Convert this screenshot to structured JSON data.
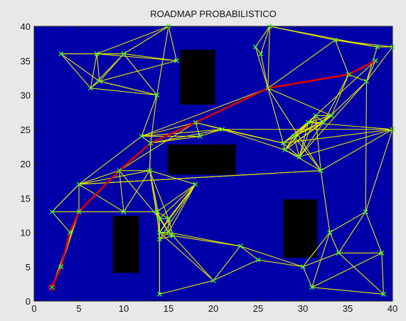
{
  "chart_data": {
    "type": "scatter",
    "title": "ROADMAP PROBABILISTICO",
    "xlabel": "",
    "ylabel": "",
    "xlim": [
      0,
      40
    ],
    "ylim": [
      0,
      40
    ],
    "xticks": [
      0,
      5,
      10,
      15,
      20,
      25,
      30,
      35,
      40
    ],
    "yticks": [
      0,
      5,
      10,
      15,
      20,
      25,
      30,
      35,
      40
    ],
    "grid": false,
    "colors": {
      "plot_bg": "#0000a8",
      "figure_bg": "#e8e8e8",
      "edges": "#e6e600",
      "nodes": "#33ff33",
      "path": "#dd0000",
      "obstacles": "#000000",
      "start_marker": "#dd0000"
    },
    "obstacles": [
      {
        "x0": 16.3,
        "y0": 28.6,
        "x1": 20.2,
        "y1": 36.6
      },
      {
        "x0": 14.9,
        "y0": 18.4,
        "x1": 22.5,
        "y1": 22.8
      },
      {
        "x0": 8.8,
        "y0": 4.1,
        "x1": 11.7,
        "y1": 12.4
      },
      {
        "x0": 27.8,
        "y0": 6.3,
        "x1": 31.6,
        "y1": 14.8
      }
    ],
    "nodes": [
      [
        3,
        36
      ],
      [
        7,
        36
      ],
      [
        10,
        36
      ],
      [
        6.3,
        31
      ],
      [
        7.3,
        32
      ],
      [
        15.9,
        35
      ],
      [
        15,
        40
      ],
      [
        13.7,
        30
      ],
      [
        24.7,
        37
      ],
      [
        25.3,
        36
      ],
      [
        26.3,
        40
      ],
      [
        33.6,
        38
      ],
      [
        38.3,
        37
      ],
      [
        40,
        37
      ],
      [
        37.1,
        32
      ],
      [
        26.1,
        31
      ],
      [
        35.1,
        33
      ],
      [
        38.1,
        35
      ],
      [
        40,
        25
      ],
      [
        32.3,
        26
      ],
      [
        33.2,
        27
      ],
      [
        31.4,
        27
      ],
      [
        30.6,
        26
      ],
      [
        29,
        24
      ],
      [
        28,
        22
      ],
      [
        29.6,
        21
      ],
      [
        32,
        19
      ],
      [
        27.8,
        23
      ],
      [
        12,
        24
      ],
      [
        13,
        23
      ],
      [
        18,
        26
      ],
      [
        18.5,
        24
      ],
      [
        21,
        25
      ],
      [
        5,
        17
      ],
      [
        9.5,
        19
      ],
      [
        10,
        13
      ],
      [
        12.9,
        19
      ],
      [
        18,
        17
      ],
      [
        13.7,
        13
      ],
      [
        14,
        12
      ],
      [
        15,
        12
      ],
      [
        14,
        10
      ],
      [
        15,
        10
      ],
      [
        14,
        9
      ],
      [
        15.5,
        9.5
      ],
      [
        2,
        13
      ],
      [
        4,
        10
      ],
      [
        3,
        5
      ],
      [
        2,
        2
      ],
      [
        5,
        13
      ],
      [
        23,
        8
      ],
      [
        25,
        6
      ],
      [
        20,
        3
      ],
      [
        14,
        1
      ],
      [
        30,
        5
      ],
      [
        31,
        2
      ],
      [
        33,
        10
      ],
      [
        37,
        13
      ],
      [
        34,
        7
      ],
      [
        38.8,
        7
      ],
      [
        39,
        1
      ]
    ],
    "edges": [
      [
        0,
        1
      ],
      [
        0,
        2
      ],
      [
        0,
        3
      ],
      [
        0,
        4
      ],
      [
        1,
        2
      ],
      [
        1,
        3
      ],
      [
        1,
        4
      ],
      [
        1,
        5
      ],
      [
        2,
        3
      ],
      [
        2,
        4
      ],
      [
        2,
        5
      ],
      [
        2,
        7
      ],
      [
        3,
        4
      ],
      [
        4,
        5
      ],
      [
        4,
        7
      ],
      [
        6,
        1
      ],
      [
        6,
        5
      ],
      [
        6,
        2
      ],
      [
        6,
        7
      ],
      [
        7,
        28
      ],
      [
        7,
        29
      ],
      [
        7,
        3
      ],
      [
        7,
        4
      ],
      [
        8,
        9
      ],
      [
        8,
        10
      ],
      [
        8,
        15
      ],
      [
        9,
        10
      ],
      [
        9,
        15
      ],
      [
        10,
        11
      ],
      [
        10,
        12
      ],
      [
        10,
        15
      ],
      [
        11,
        12
      ],
      [
        11,
        13
      ],
      [
        11,
        16
      ],
      [
        11,
        15
      ],
      [
        12,
        13
      ],
      [
        12,
        14
      ],
      [
        13,
        14
      ],
      [
        13,
        18
      ],
      [
        14,
        16
      ],
      [
        14,
        17
      ],
      [
        16,
        17
      ],
      [
        15,
        16
      ],
      [
        15,
        30
      ],
      [
        15,
        28
      ],
      [
        15,
        26
      ],
      [
        15,
        27
      ],
      [
        15,
        20
      ],
      [
        16,
        20
      ],
      [
        16,
        19
      ],
      [
        14,
        19
      ],
      [
        14,
        25
      ],
      [
        17,
        21
      ],
      [
        18,
        22
      ],
      [
        18,
        25
      ],
      [
        19,
        20
      ],
      [
        19,
        21
      ],
      [
        19,
        22
      ],
      [
        19,
        23
      ],
      [
        19,
        24
      ],
      [
        19,
        25
      ],
      [
        20,
        21
      ],
      [
        20,
        22
      ],
      [
        20,
        23
      ],
      [
        20,
        24
      ],
      [
        20,
        27
      ],
      [
        21,
        22
      ],
      [
        21,
        23
      ],
      [
        21,
        24
      ],
      [
        21,
        25
      ],
      [
        21,
        27
      ],
      [
        22,
        23
      ],
      [
        22,
        24
      ],
      [
        22,
        25
      ],
      [
        22,
        27
      ],
      [
        23,
        24
      ],
      [
        23,
        25
      ],
      [
        23,
        27
      ],
      [
        24,
        25
      ],
      [
        24,
        27
      ],
      [
        25,
        27
      ],
      [
        26,
        24
      ],
      [
        26,
        23
      ],
      [
        26,
        33
      ],
      [
        26,
        21
      ],
      [
        26,
        18
      ],
      [
        27,
        32
      ],
      [
        27,
        18
      ],
      [
        24,
        32
      ],
      [
        28,
        29
      ],
      [
        28,
        30
      ],
      [
        28,
        31
      ],
      [
        28,
        32
      ],
      [
        29,
        30
      ],
      [
        29,
        31
      ],
      [
        29,
        32
      ],
      [
        29,
        34
      ],
      [
        29,
        36
      ],
      [
        30,
        31
      ],
      [
        30,
        32
      ],
      [
        31,
        32
      ],
      [
        30,
        34
      ],
      [
        33,
        34
      ],
      [
        33,
        35
      ],
      [
        33,
        36
      ],
      [
        33,
        45
      ],
      [
        33,
        49
      ],
      [
        34,
        35
      ],
      [
        34,
        36
      ],
      [
        34,
        49
      ],
      [
        35,
        36
      ],
      [
        35,
        49
      ],
      [
        36,
        37
      ],
      [
        36,
        38
      ],
      [
        36,
        39
      ],
      [
        36,
        40
      ],
      [
        36,
        41
      ],
      [
        37,
        38
      ],
      [
        37,
        39
      ],
      [
        37,
        40
      ],
      [
        37,
        41
      ],
      [
        37,
        42
      ],
      [
        38,
        39
      ],
      [
        38,
        40
      ],
      [
        38,
        41
      ],
      [
        38,
        42
      ],
      [
        38,
        43
      ],
      [
        39,
        40
      ],
      [
        39,
        41
      ],
      [
        39,
        42
      ],
      [
        39,
        43
      ],
      [
        40,
        41
      ],
      [
        40,
        42
      ],
      [
        40,
        44
      ],
      [
        41,
        42
      ],
      [
        41,
        43
      ],
      [
        41,
        44
      ],
      [
        42,
        43
      ],
      [
        42,
        44
      ],
      [
        43,
        44
      ],
      [
        43,
        53
      ],
      [
        41,
        53
      ],
      [
        42,
        50
      ],
      [
        44,
        50
      ],
      [
        44,
        52
      ],
      [
        41,
        52
      ],
      [
        45,
        46
      ],
      [
        45,
        49
      ],
      [
        45,
        33
      ],
      [
        46,
        47
      ],
      [
        46,
        49
      ],
      [
        47,
        48
      ],
      [
        47,
        49
      ],
      [
        49,
        48
      ],
      [
        50,
        51
      ],
      [
        50,
        52
      ],
      [
        51,
        54
      ],
      [
        51,
        52
      ],
      [
        52,
        53
      ],
      [
        54,
        55
      ],
      [
        54,
        56
      ],
      [
        54,
        58
      ],
      [
        55,
        56
      ],
      [
        55,
        59
      ],
      [
        55,
        60
      ],
      [
        56,
        57
      ],
      [
        56,
        58
      ],
      [
        57,
        58
      ],
      [
        57,
        59
      ],
      [
        58,
        59
      ],
      [
        58,
        60
      ],
      [
        59,
        60
      ],
      [
        50,
        54
      ],
      [
        14,
        57
      ],
      [
        18,
        57
      ],
      [
        26,
        56
      ],
      [
        26,
        33
      ],
      [
        28,
        33
      ],
      [
        29,
        34
      ],
      [
        34,
        39
      ],
      [
        37,
        43
      ],
      [
        35,
        38
      ],
      [
        36,
        29
      ],
      [
        32,
        18
      ],
      [
        30,
        27
      ]
    ],
    "path": [
      [
        2,
        2
      ],
      [
        3,
        5
      ],
      [
        4,
        10
      ],
      [
        5,
        13
      ],
      [
        9.5,
        19
      ],
      [
        13,
        23
      ],
      [
        18,
        26
      ],
      [
        26.1,
        31
      ],
      [
        35.1,
        33
      ],
      [
        38.1,
        35
      ]
    ],
    "start": [
      2,
      2
    ]
  }
}
